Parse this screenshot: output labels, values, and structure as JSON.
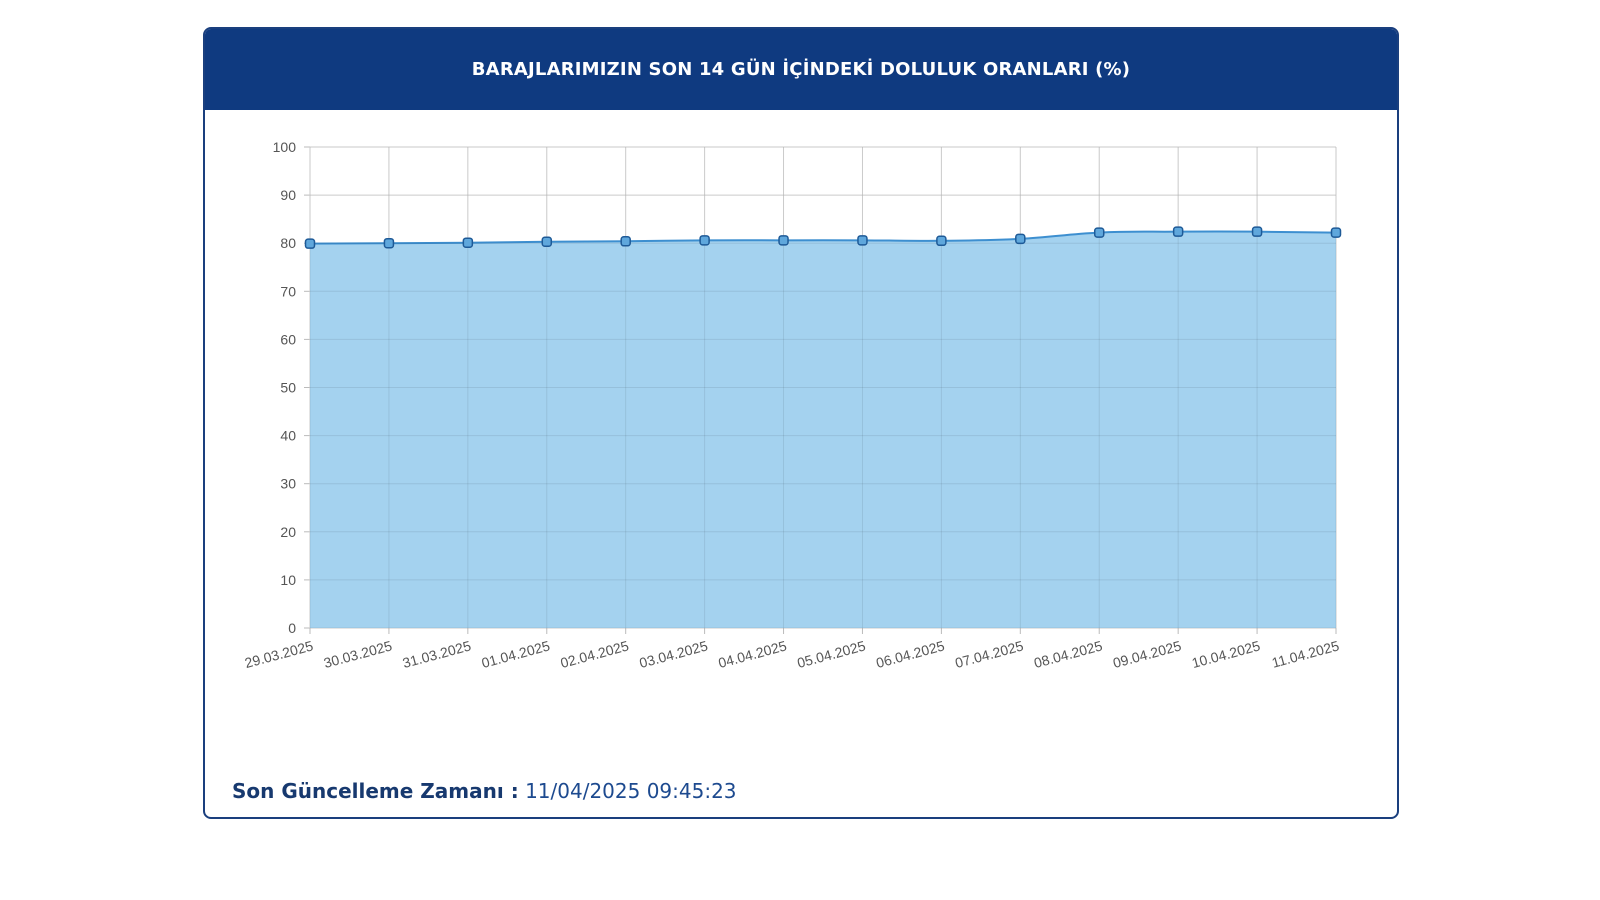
{
  "panel": {
    "title": "BARAJLARIMIZIN SON 14 GÜN İÇİNDEKİ DOLULUK ORANLARI (%)",
    "updated_label": "Son Güncelleme Zamanı :",
    "updated_value": "11/04/2025 09:45:23"
  },
  "colors": {
    "header": "#0f3a80",
    "area_fill": "#9fd0ee",
    "line": "#3d8fd0",
    "marker_fill": "#5fa7dc",
    "marker_stroke": "#1e5a97",
    "grid": "#dcdcdc"
  },
  "chart_data": {
    "type": "area",
    "title": "BARAJLARIMIZIN SON 14 GÜN İÇİNDEKİ DOLULUK ORANLARI (%)",
    "xlabel": "",
    "ylabel": "",
    "ylim": [
      0,
      100
    ],
    "yticks": [
      0,
      10,
      20,
      30,
      40,
      50,
      60,
      70,
      80,
      90,
      100
    ],
    "grid": true,
    "legend": "none",
    "categories": [
      "29.03.2025",
      "30.03.2025",
      "31.03.2025",
      "01.04.2025",
      "02.04.2025",
      "03.04.2025",
      "04.04.2025",
      "05.04.2025",
      "06.04.2025",
      "07.04.2025",
      "08.04.2025",
      "09.04.2025",
      "10.04.2025",
      "11.04.2025"
    ],
    "series": [
      {
        "values": [
          79.9,
          80.0,
          80.1,
          80.3,
          80.4,
          80.6,
          80.6,
          80.6,
          80.5,
          80.9,
          82.2,
          82.4,
          82.4,
          82.2
        ]
      }
    ]
  }
}
